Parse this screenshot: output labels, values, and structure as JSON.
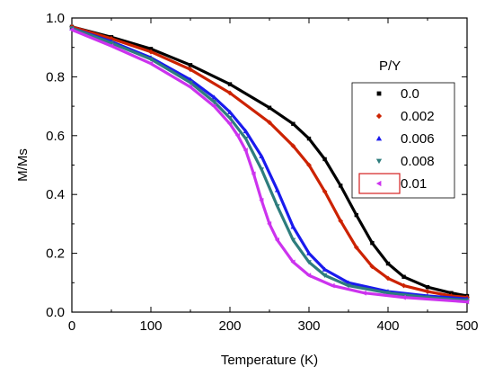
{
  "chart_data": {
    "type": "scatter",
    "xlabel": "Temperature (K)",
    "ylabel": "M/Ms",
    "xlim": [
      0,
      500
    ],
    "ylim": [
      0.0,
      1.0
    ],
    "xticks": [
      0,
      100,
      200,
      300,
      400,
      500
    ],
    "yticks": [
      "0.0",
      "0.2",
      "0.4",
      "0.6",
      "0.8",
      "1.0"
    ],
    "grid": false,
    "legend": {
      "title": "P/Y",
      "placement": "right",
      "highlighted_entry": "0.01"
    },
    "series": [
      {
        "name": "0.0",
        "color": "#000000",
        "marker": "square",
        "points": [
          [
            0,
            0.97
          ],
          [
            50,
            0.935
          ],
          [
            100,
            0.895
          ],
          [
            150,
            0.84
          ],
          [
            200,
            0.775
          ],
          [
            250,
            0.695
          ],
          [
            280,
            0.64
          ],
          [
            300,
            0.59
          ],
          [
            320,
            0.52
          ],
          [
            340,
            0.43
          ],
          [
            360,
            0.33
          ],
          [
            380,
            0.235
          ],
          [
            400,
            0.165
          ],
          [
            420,
            0.12
          ],
          [
            450,
            0.085
          ],
          [
            480,
            0.065
          ],
          [
            500,
            0.055
          ]
        ]
      },
      {
        "name": "0.002",
        "color": "#cc2200",
        "marker": "diamond",
        "points": [
          [
            0,
            0.97
          ],
          [
            50,
            0.93
          ],
          [
            100,
            0.885
          ],
          [
            150,
            0.825
          ],
          [
            200,
            0.745
          ],
          [
            250,
            0.645
          ],
          [
            280,
            0.565
          ],
          [
            300,
            0.5
          ],
          [
            320,
            0.41
          ],
          [
            340,
            0.31
          ],
          [
            360,
            0.22
          ],
          [
            380,
            0.155
          ],
          [
            400,
            0.115
          ],
          [
            420,
            0.09
          ],
          [
            450,
            0.07
          ],
          [
            480,
            0.055
          ],
          [
            500,
            0.05
          ]
        ]
      },
      {
        "name": "0.006",
        "color": "#1a1aee",
        "marker": "triangle-up",
        "points": [
          [
            0,
            0.965
          ],
          [
            50,
            0.92
          ],
          [
            100,
            0.865
          ],
          [
            150,
            0.79
          ],
          [
            180,
            0.73
          ],
          [
            200,
            0.68
          ],
          [
            220,
            0.615
          ],
          [
            240,
            0.53
          ],
          [
            260,
            0.415
          ],
          [
            280,
            0.29
          ],
          [
            300,
            0.2
          ],
          [
            320,
            0.145
          ],
          [
            350,
            0.1
          ],
          [
            400,
            0.07
          ],
          [
            450,
            0.055
          ],
          [
            500,
            0.045
          ]
        ]
      },
      {
        "name": "0.008",
        "color": "#2e7d7d",
        "marker": "triangle-down",
        "points": [
          [
            0,
            0.965
          ],
          [
            50,
            0.915
          ],
          [
            100,
            0.86
          ],
          [
            150,
            0.78
          ],
          [
            180,
            0.715
          ],
          [
            200,
            0.66
          ],
          [
            220,
            0.59
          ],
          [
            240,
            0.485
          ],
          [
            260,
            0.36
          ],
          [
            280,
            0.245
          ],
          [
            300,
            0.17
          ],
          [
            320,
            0.125
          ],
          [
            350,
            0.09
          ],
          [
            400,
            0.065
          ],
          [
            450,
            0.05
          ],
          [
            500,
            0.04
          ]
        ]
      },
      {
        "name": "0.01",
        "color": "#cc33ee",
        "marker": "triangle-left",
        "points": [
          [
            0,
            0.96
          ],
          [
            50,
            0.905
          ],
          [
            100,
            0.845
          ],
          [
            150,
            0.765
          ],
          [
            180,
            0.7
          ],
          [
            200,
            0.64
          ],
          [
            210,
            0.6
          ],
          [
            220,
            0.55
          ],
          [
            230,
            0.47
          ],
          [
            240,
            0.38
          ],
          [
            250,
            0.3
          ],
          [
            260,
            0.245
          ],
          [
            280,
            0.17
          ],
          [
            300,
            0.125
          ],
          [
            330,
            0.09
          ],
          [
            370,
            0.065
          ],
          [
            420,
            0.05
          ],
          [
            500,
            0.035
          ]
        ]
      }
    ]
  }
}
